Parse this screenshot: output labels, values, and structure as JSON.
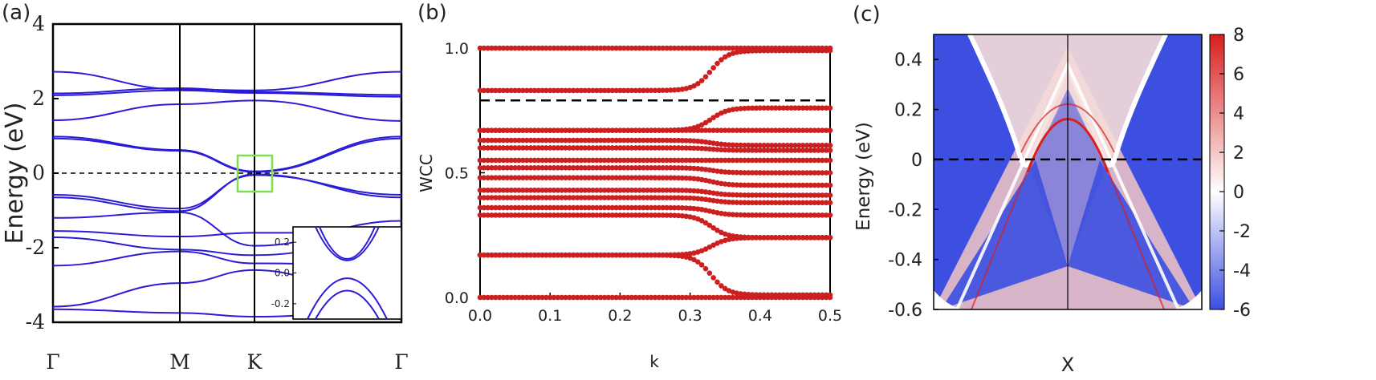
{
  "chart_data": [
    {
      "panel_label": "(a)",
      "type": "line",
      "ylabel": "Energy (eV)",
      "ylim": [
        -4,
        4
      ],
      "yticks": [
        "4",
        "2",
        "0",
        "-2",
        "-4"
      ],
      "kpath_labels": [
        "Γ",
        "M",
        "K",
        "Γ"
      ],
      "fermi_level": 0,
      "color": "#2b1bd6",
      "highlight_box_color": "#7ee04b",
      "series": [
        {
          "values": [
            2.72,
            2.25,
            2.22,
            2.72
          ]
        },
        {
          "values": [
            2.14,
            2.28,
            2.18,
            2.1
          ]
        },
        {
          "values": [
            2.09,
            2.22,
            2.15,
            2.05
          ]
        },
        {
          "values": [
            1.42,
            1.85,
            1.95,
            1.4
          ]
        },
        {
          "values": [
            0.98,
            0.62,
            0.05,
            0.98
          ]
        },
        {
          "values": [
            0.93,
            0.6,
            0.03,
            0.93
          ]
        },
        {
          "values": [
            -0.58,
            -0.95,
            -0.05,
            -0.58
          ]
        },
        {
          "values": [
            -0.65,
            -1.02,
            -0.03,
            -0.65
          ]
        },
        {
          "values": [
            -1.2,
            -1.05,
            -1.95,
            -1.28
          ]
        },
        {
          "values": [
            -1.55,
            -1.7,
            -1.6,
            -1.6
          ]
        },
        {
          "values": [
            -1.72,
            -2.05,
            -2.2,
            -1.72
          ]
        },
        {
          "values": [
            -2.48,
            -2.1,
            -2.42,
            -2.48
          ]
        },
        {
          "values": [
            -3.58,
            -2.95,
            -2.6,
            -3.58
          ]
        },
        {
          "values": [
            -3.65,
            -3.75,
            -3.85,
            -3.65
          ]
        }
      ],
      "inset": {
        "yticks": [
          "0.2",
          "0.0",
          "-0.2"
        ],
        "ylim": [
          -0.3,
          0.3
        ]
      }
    },
    {
      "panel_label": "(b)",
      "type": "scatter",
      "xlabel": "k",
      "ylabel": "WCC",
      "xlim": [
        0,
        0.5
      ],
      "ylim": [
        0,
        1
      ],
      "xticks": [
        "0.0",
        "0.1",
        "0.2",
        "0.3",
        "0.4",
        "0.5"
      ],
      "yticks": [
        "0.0",
        "0.5",
        "1.0"
      ],
      "dashed_line_y": 0.79,
      "color": "#cc1f1f",
      "transition_k": 0.33,
      "series": [
        {
          "start": 0.0,
          "end": 0.0
        },
        {
          "start": 0.17,
          "end": 0.01
        },
        {
          "start": 0.17,
          "end": 0.24
        },
        {
          "start": 0.33,
          "end": 0.24
        },
        {
          "start": 0.36,
          "end": 0.33
        },
        {
          "start": 0.4,
          "end": 0.38
        },
        {
          "start": 0.43,
          "end": 0.41
        },
        {
          "start": 0.48,
          "end": 0.45
        },
        {
          "start": 0.52,
          "end": 0.5
        },
        {
          "start": 0.55,
          "end": 0.55
        },
        {
          "start": 0.6,
          "end": 0.59
        },
        {
          "start": 0.63,
          "end": 0.61
        },
        {
          "start": 0.67,
          "end": 0.67
        },
        {
          "start": 0.67,
          "end": 0.76
        },
        {
          "start": 0.83,
          "end": 0.99
        },
        {
          "start": 1.0,
          "end": 1.0
        }
      ]
    },
    {
      "panel_label": "(c)",
      "type": "heatmap",
      "xlabel": "X",
      "ylabel": "Energy (eV)",
      "ylim": [
        -0.6,
        0.5
      ],
      "yticks": [
        "0.4",
        "0.2",
        "0",
        "-0.2",
        "-0.4",
        "-0.6"
      ],
      "colorbar_ticks": [
        "8",
        "6",
        "4",
        "2",
        "0",
        "-2",
        "-4",
        "-6"
      ],
      "colorbar_range": [
        -6,
        8
      ],
      "colormap": [
        "#3c4fe0",
        "#ffffff",
        "#d61f1f"
      ],
      "fermi_level": 0
    }
  ]
}
